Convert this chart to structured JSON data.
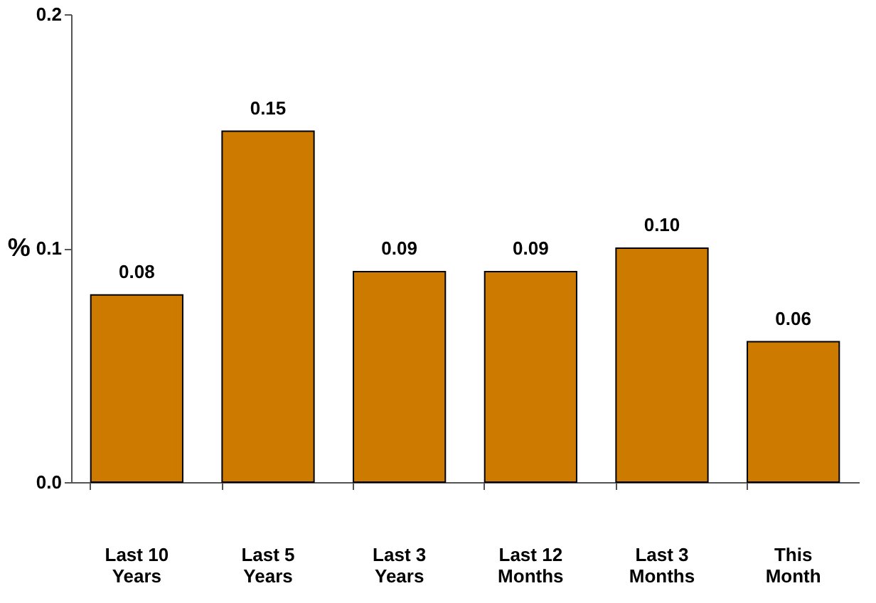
{
  "chart_data": {
    "type": "bar",
    "categories": [
      "Last 10 Years",
      "Last 5 Years",
      "Last 3 Years",
      "Last 12 Months",
      "Last 3 Months",
      "This Month"
    ],
    "values": [
      0.08,
      0.15,
      0.09,
      0.09,
      0.1,
      0.06
    ],
    "value_labels": [
      "0.08",
      "0.15",
      "0.09",
      "0.09",
      "0.10",
      "0.06"
    ],
    "color": "#cc7a00",
    "ylabel": "%",
    "ylim": [
      0,
      0.2
    ],
    "yticks": [
      {
        "value": 0,
        "label": "0.0"
      },
      0.1,
      0.2
    ],
    "grid": false
  }
}
